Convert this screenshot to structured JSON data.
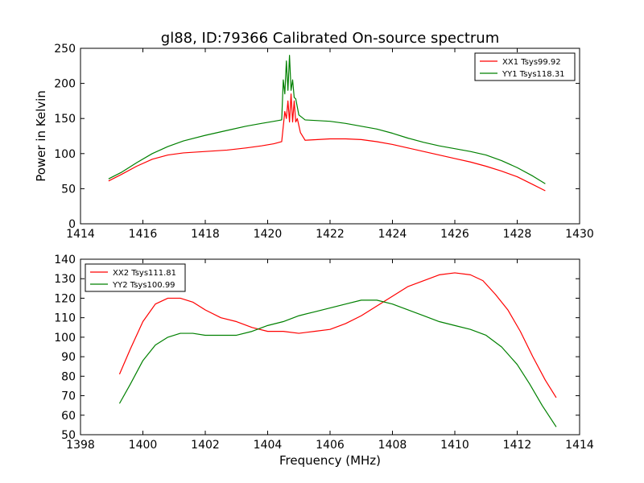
{
  "figure": {
    "title": "gl88, ID:79366 Calibrated On-source spectrum",
    "xlabel": "Frequency (MHz)"
  },
  "colors": {
    "red": "#ff0000",
    "green": "#008000",
    "axes": "#000000"
  },
  "chart_data": [
    {
      "type": "line",
      "ylabel": "Power in Kelvin",
      "xlim": [
        1414,
        1430
      ],
      "ylim": [
        0,
        250
      ],
      "xticks": [
        1414,
        1416,
        1418,
        1420,
        1422,
        1424,
        1426,
        1428,
        1430
      ],
      "yticks": [
        0,
        50,
        100,
        150,
        200,
        250
      ],
      "legend": "top-right",
      "series": [
        {
          "name": "XX1 Tsys99.92",
          "color": "#ff0000",
          "points": [
            [
              1414.9,
              61
            ],
            [
              1415.3,
              70
            ],
            [
              1415.8,
              82
            ],
            [
              1416.3,
              92
            ],
            [
              1416.8,
              98
            ],
            [
              1417.3,
              101
            ],
            [
              1418,
              103
            ],
            [
              1418.7,
              105
            ],
            [
              1419.3,
              108
            ],
            [
              1419.8,
              111
            ],
            [
              1420.2,
              114
            ],
            [
              1420.45,
              117
            ],
            [
              1420.55,
              160
            ],
            [
              1420.6,
              150
            ],
            [
              1420.65,
              175
            ],
            [
              1420.7,
              145
            ],
            [
              1420.75,
              185
            ],
            [
              1420.8,
              145
            ],
            [
              1420.85,
              175
            ],
            [
              1420.9,
              145
            ],
            [
              1420.95,
              150
            ],
            [
              1421.05,
              130
            ],
            [
              1421.2,
              119
            ],
            [
              1421.6,
              120
            ],
            [
              1422,
              121
            ],
            [
              1422.5,
              121
            ],
            [
              1423,
              120
            ],
            [
              1423.5,
              117
            ],
            [
              1424,
              113
            ],
            [
              1424.5,
              108
            ],
            [
              1425,
              103
            ],
            [
              1425.5,
              98
            ],
            [
              1426,
              93
            ],
            [
              1426.5,
              88
            ],
            [
              1427,
              82
            ],
            [
              1427.5,
              75
            ],
            [
              1428,
              67
            ],
            [
              1428.5,
              56
            ],
            [
              1428.9,
              47
            ]
          ]
        },
        {
          "name": "YY1 Tsys118.31",
          "color": "#008000",
          "points": [
            [
              1414.9,
              64
            ],
            [
              1415.3,
              73
            ],
            [
              1415.8,
              87
            ],
            [
              1416.3,
              100
            ],
            [
              1416.8,
              110
            ],
            [
              1417.3,
              118
            ],
            [
              1418,
              126
            ],
            [
              1418.7,
              133
            ],
            [
              1419.3,
              139
            ],
            [
              1419.8,
              143
            ],
            [
              1420.2,
              146
            ],
            [
              1420.45,
              148
            ],
            [
              1420.5,
              205
            ],
            [
              1420.55,
              185
            ],
            [
              1420.6,
              232
            ],
            [
              1420.65,
              190
            ],
            [
              1420.7,
              240
            ],
            [
              1420.75,
              190
            ],
            [
              1420.8,
              205
            ],
            [
              1420.85,
              180
            ],
            [
              1420.9,
              178
            ],
            [
              1421,
              155
            ],
            [
              1421.2,
              148
            ],
            [
              1421.6,
              147
            ],
            [
              1422,
              146
            ],
            [
              1422.5,
              143
            ],
            [
              1423,
              139
            ],
            [
              1423.5,
              135
            ],
            [
              1424,
              129
            ],
            [
              1424.5,
              122
            ],
            [
              1425,
              116
            ],
            [
              1425.5,
              111
            ],
            [
              1426,
              107
            ],
            [
              1426.5,
              103
            ],
            [
              1427,
              98
            ],
            [
              1427.5,
              90
            ],
            [
              1428,
              80
            ],
            [
              1428.5,
              68
            ],
            [
              1428.9,
              57
            ]
          ]
        }
      ]
    },
    {
      "type": "line",
      "xlabel": "Frequency (MHz)",
      "xlim": [
        1398,
        1414
      ],
      "ylim": [
        50,
        140
      ],
      "xticks": [
        1398,
        1400,
        1402,
        1404,
        1406,
        1408,
        1410,
        1412,
        1414
      ],
      "yticks": [
        50,
        60,
        70,
        80,
        90,
        100,
        110,
        120,
        130,
        140
      ],
      "legend": "top-left",
      "series": [
        {
          "name": "XX2 Tsys111.81",
          "color": "#ff0000",
          "points": [
            [
              1399.25,
              81
            ],
            [
              1399.6,
              94
            ],
            [
              1400,
              108
            ],
            [
              1400.4,
              117
            ],
            [
              1400.8,
              120
            ],
            [
              1401.2,
              120
            ],
            [
              1401.6,
              118
            ],
            [
              1402,
              114
            ],
            [
              1402.5,
              110
            ],
            [
              1403,
              108
            ],
            [
              1403.5,
              105
            ],
            [
              1404,
              103
            ],
            [
              1404.5,
              103
            ],
            [
              1405,
              102
            ],
            [
              1405.5,
              103
            ],
            [
              1406,
              104
            ],
            [
              1406.5,
              107
            ],
            [
              1407,
              111
            ],
            [
              1407.5,
              116
            ],
            [
              1408,
              121
            ],
            [
              1408.5,
              126
            ],
            [
              1409,
              129
            ],
            [
              1409.5,
              132
            ],
            [
              1410,
              133
            ],
            [
              1410.5,
              132
            ],
            [
              1410.9,
              129
            ],
            [
              1411.3,
              122
            ],
            [
              1411.7,
              114
            ],
            [
              1412.1,
              103
            ],
            [
              1412.5,
              90
            ],
            [
              1412.9,
              78
            ],
            [
              1413.25,
              69
            ]
          ]
        },
        {
          "name": "YY2 Tsys100.99",
          "color": "#008000",
          "points": [
            [
              1399.25,
              66
            ],
            [
              1399.6,
              76
            ],
            [
              1400,
              88
            ],
            [
              1400.4,
              96
            ],
            [
              1400.8,
              100
            ],
            [
              1401.2,
              102
            ],
            [
              1401.6,
              102
            ],
            [
              1402,
              101
            ],
            [
              1402.5,
              101
            ],
            [
              1403,
              101
            ],
            [
              1403.5,
              103
            ],
            [
              1404,
              106
            ],
            [
              1404.5,
              108
            ],
            [
              1405,
              111
            ],
            [
              1405.5,
              113
            ],
            [
              1406,
              115
            ],
            [
              1406.5,
              117
            ],
            [
              1407,
              119
            ],
            [
              1407.5,
              119
            ],
            [
              1408,
              117
            ],
            [
              1408.5,
              114
            ],
            [
              1409,
              111
            ],
            [
              1409.5,
              108
            ],
            [
              1410,
              106
            ],
            [
              1410.5,
              104
            ],
            [
              1411,
              101
            ],
            [
              1411.5,
              95
            ],
            [
              1412,
              86
            ],
            [
              1412.4,
              76
            ],
            [
              1412.8,
              65
            ],
            [
              1413.25,
              54
            ]
          ]
        }
      ]
    }
  ]
}
